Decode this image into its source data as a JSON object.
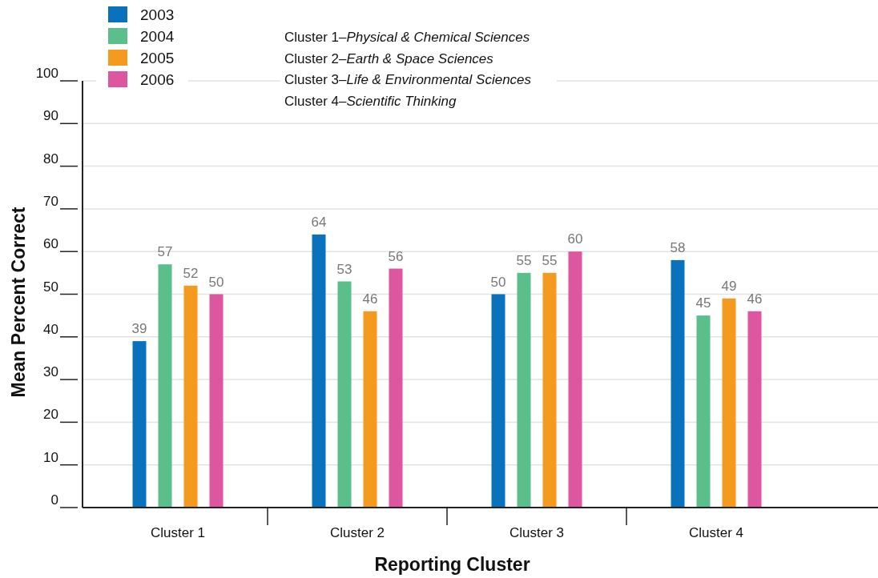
{
  "chart_data": {
    "type": "bar",
    "xlabel": "Reporting Cluster",
    "ylabel": "Mean Percent Correct",
    "categories": [
      "Cluster 1",
      "Cluster 2",
      "Cluster 3",
      "Cluster 4"
    ],
    "series": [
      {
        "name": "2003",
        "color": "#0a72bd",
        "values": [
          39,
          64,
          50,
          58
        ]
      },
      {
        "name": "2004",
        "color": "#5bbf8c",
        "values": [
          57,
          53,
          55,
          45
        ]
      },
      {
        "name": "2005",
        "color": "#f39a1f",
        "values": [
          52,
          46,
          55,
          49
        ]
      },
      {
        "name": "2006",
        "color": "#de55a0",
        "values": [
          50,
          56,
          60,
          46
        ]
      }
    ],
    "ylim": [
      0,
      100
    ],
    "yticks": [
      0,
      10,
      20,
      30,
      40,
      50,
      60,
      70,
      80,
      90,
      100
    ],
    "grid": "y",
    "legend": "top left",
    "data_labels": true,
    "annotations": [
      "Cluster 1–Physical & Chemical Sciences",
      "Cluster 2–Earth & Space Sciences",
      "Cluster 3–Life & Environmental Sciences",
      "Cluster 4–Scientific Thinking"
    ]
  }
}
